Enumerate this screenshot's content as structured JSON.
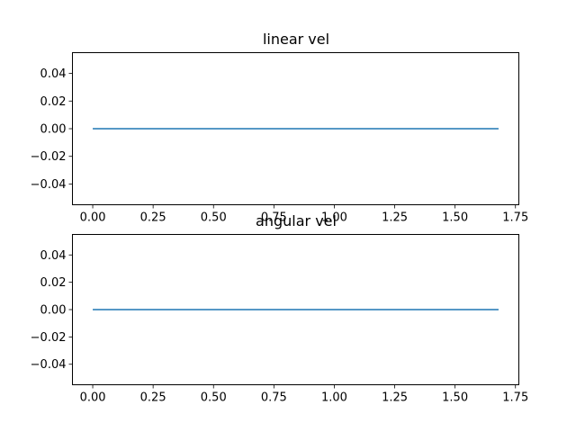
{
  "colors": {
    "series": "#1f77b4"
  },
  "chart_data": [
    {
      "type": "line",
      "title": "linear vel",
      "xlabel": "",
      "ylabel": "",
      "xlim": [
        -0.084,
        1.764
      ],
      "ylim": [
        -0.055,
        0.055
      ],
      "xticks": [
        0.0,
        0.25,
        0.5,
        0.75,
        1.0,
        1.25,
        1.5,
        1.75
      ],
      "xtick_labels": [
        "0.00",
        "0.25",
        "0.50",
        "0.75",
        "1.00",
        "1.25",
        "1.50",
        "1.75"
      ],
      "yticks": [
        -0.04,
        -0.02,
        0.0,
        0.02,
        0.04
      ],
      "ytick_labels": [
        "−0.04",
        "−0.02",
        "0.00",
        "0.02",
        "0.04"
      ],
      "grid": false,
      "series": [
        {
          "x": [
            0.0,
            1.68
          ],
          "y": [
            0.0,
            0.0
          ]
        }
      ]
    },
    {
      "type": "line",
      "title": "angular vel",
      "xlabel": "",
      "ylabel": "",
      "xlim": [
        -0.084,
        1.764
      ],
      "ylim": [
        -0.055,
        0.055
      ],
      "xticks": [
        0.0,
        0.25,
        0.5,
        0.75,
        1.0,
        1.25,
        1.5,
        1.75
      ],
      "xtick_labels": [
        "0.00",
        "0.25",
        "0.50",
        "0.75",
        "1.00",
        "1.25",
        "1.50",
        "1.75"
      ],
      "yticks": [
        -0.04,
        -0.02,
        0.0,
        0.02,
        0.04
      ],
      "ytick_labels": [
        "−0.04",
        "−0.02",
        "0.00",
        "0.02",
        "0.04"
      ],
      "grid": false,
      "series": [
        {
          "x": [
            0.0,
            1.68
          ],
          "y": [
            0.0,
            0.0
          ]
        }
      ]
    }
  ]
}
